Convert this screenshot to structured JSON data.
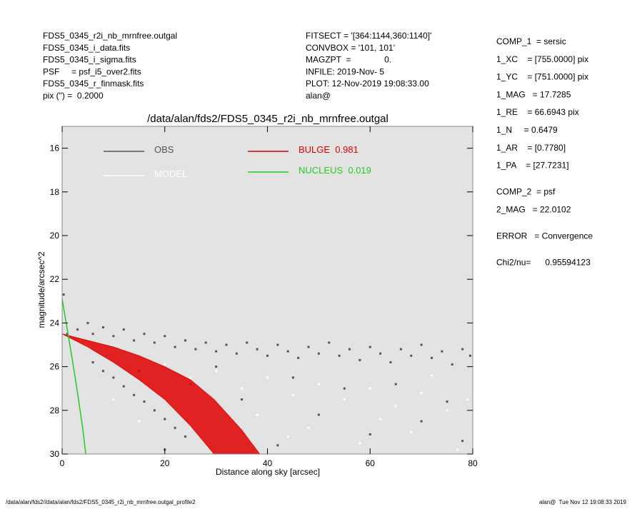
{
  "header": {
    "left": [
      "FDS5_0345_r2i_nb_mrnfree.outgal",
      "FDS5_0345_i_data.fits",
      "FDS5_0345_i_sigma.fits",
      "PSF     = psf_i5_over2.fits",
      "FDS5_0345_r_finmask.fits",
      "pix (\") =  0.2000"
    ],
    "middle": [
      "FITSECT = '[364:1144,360:1140]'",
      "CONVBOX = '101, 101'",
      "MAGZPT  =              0.",
      "INFILE: 2019-Nov- 5",
      "PLOT: 12-Nov-2019 19:08:33.00",
      "alan@"
    ]
  },
  "parameters": [
    [
      "COMP_1  = sersic",
      "1_XC    = [755.0000] pix",
      "1_YC    = [751.0000] pix",
      "1_MAG   = 17.7285",
      "1_RE    = 66.6943 pix",
      "1_N     = 0.6479",
      "1_AR    = [0.7780]",
      "1_PA    = [27.7231]"
    ],
    [
      "COMP_2  = psf",
      "2_MAG   = 22.0102"
    ],
    [
      "ERROR   = Convergence"
    ],
    [
      "Chi2/nu=      0.95594123"
    ]
  ],
  "footer": {
    "left": "/data/alan/fds2//data/alan/fds2/FDS5_0345_r2i_nb_mrnfree.outgal_profile2",
    "right": "alan@  Tue Nov 12 19:08:33 2019"
  },
  "chart_data": {
    "type": "scatter",
    "title": "/data/alan/fds2/FDS5_0345_r2i_nb_mrnfree.outgal",
    "x_label": "Distance along sky [arcsec]",
    "y_label": "magnitude/arcsec^2",
    "xlim": [
      0,
      80
    ],
    "ylim": [
      30,
      15
    ],
    "xticks": [
      0,
      20,
      40,
      60,
      80
    ],
    "yticks": [
      16,
      18,
      20,
      22,
      24,
      26,
      28,
      30
    ],
    "background": "#e3e3e3",
    "series": [
      {
        "name": "OBS",
        "type": "scatter",
        "color": "#555555",
        "x": [
          3,
          5,
          6,
          8,
          10,
          12,
          14,
          16,
          18,
          20,
          22,
          24,
          26,
          28,
          30,
          32,
          34,
          36,
          38,
          40,
          42,
          44,
          46,
          48,
          50,
          52,
          54,
          56,
          58,
          60,
          62,
          64,
          66,
          68,
          70,
          72,
          74,
          76,
          78,
          79.5,
          6,
          8,
          10,
          12,
          14,
          16,
          18,
          20,
          22,
          24,
          0.3,
          1,
          15,
          25,
          35,
          45,
          50,
          55,
          60,
          65,
          70,
          75,
          78,
          42,
          30,
          20
        ],
        "values": [
          24.3,
          24.0,
          24.5,
          24.2,
          24.6,
          24.3,
          24.8,
          24.5,
          24.9,
          24.6,
          25.1,
          24.8,
          25.2,
          24.9,
          25.3,
          25.0,
          25.4,
          24.9,
          25.2,
          25.5,
          25.0,
          25.3,
          25.6,
          25.1,
          25.4,
          24.9,
          25.5,
          25.2,
          25.7,
          25.1,
          25.4,
          25.8,
          25.2,
          25.5,
          25.0,
          25.6,
          25.3,
          25.9,
          25.2,
          25.5,
          25.8,
          26.2,
          26.5,
          26.9,
          27.3,
          27.6,
          28.0,
          28.4,
          28.8,
          29.2,
          22.7,
          24.5,
          26.2,
          26.8,
          27.5,
          26.5,
          28.2,
          27.0,
          29.1,
          26.8,
          28.5,
          27.6,
          29.4,
          29.6,
          26.0,
          29.8
        ]
      },
      {
        "name": "MODEL",
        "type": "scatter",
        "color": "#ffffff",
        "x": [
          2,
          5,
          8,
          12,
          16,
          20,
          25,
          30,
          35,
          40,
          45,
          50,
          55,
          60,
          65,
          70,
          75,
          79,
          10,
          15,
          28,
          33,
          48,
          58,
          68,
          77,
          44,
          38,
          62,
          72
        ],
        "values": [
          24.6,
          25.0,
          25.2,
          25.6,
          26.0,
          25.9,
          26.5,
          26.2,
          27.0,
          26.5,
          27.3,
          26.8,
          27.5,
          27.0,
          27.8,
          27.2,
          28.0,
          27.5,
          27.5,
          28.5,
          28.0,
          29.0,
          28.8,
          29.5,
          29.0,
          29.8,
          29.2,
          28.2,
          28.4,
          26.4
        ]
      },
      {
        "name": "BULGE  0.981",
        "type": "band",
        "color": "#e00000",
        "x": [
          0,
          5,
          10,
          15,
          20,
          25,
          29.6,
          35,
          38.5
        ],
        "values": [
          24.5,
          24.8,
          25.1,
          25.5,
          26.0,
          26.6,
          27.5,
          28.9,
          30
        ],
        "low": [
          24.5,
          25.1,
          25.8,
          26.6,
          27.5,
          28.7,
          30,
          null,
          null
        ]
      },
      {
        "name": "NUCLEUS  0.019",
        "type": "line",
        "color": "#22cc22",
        "x": [
          0,
          0.5,
          1,
          1.5,
          2,
          3,
          4,
          4.6
        ],
        "values": [
          22.9,
          23.6,
          24.3,
          25.0,
          25.7,
          27.2,
          28.8,
          30
        ]
      }
    ]
  }
}
